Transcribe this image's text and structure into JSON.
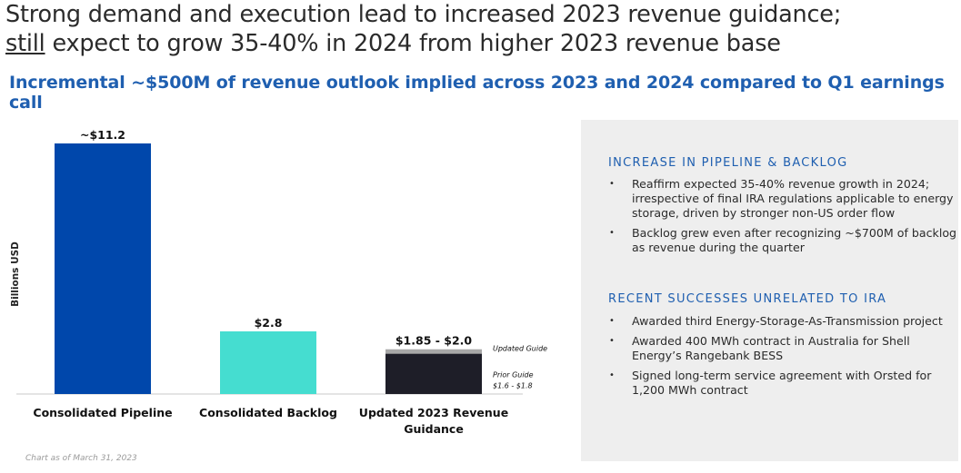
{
  "header": {
    "title_line1": "Strong demand and execution lead to increased 2023 revenue guidance;",
    "title_line2_underlined": "still",
    "title_line2_rest": " expect to grow 35-40% in 2024 from higher 2023 revenue base",
    "subtitle": "Incremental ~$500M of revenue outlook implied across 2023 and 2024 compared to Q1 earnings call"
  },
  "chart_data": {
    "type": "bar",
    "categories": [
      "Consolidated Pipeline",
      "Consolidated Backlog",
      "Updated 2023 Revenue Guidance"
    ],
    "category_lines": [
      [
        "Consolidated Pipeline"
      ],
      [
        "Consolidated Backlog"
      ],
      [
        "Updated 2023 Revenue",
        "Guidance"
      ]
    ],
    "values": [
      11.2,
      2.8,
      2.0
    ],
    "data_labels": [
      "~$11.2",
      "$2.8",
      "$1.85 - $2.0"
    ],
    "colors": [
      "#0047ab",
      "#45ddd0",
      "#1e1e28"
    ],
    "guidance": {
      "prior_range": [
        1.6,
        1.8
      ],
      "updated_range": [
        1.85,
        2.0
      ],
      "prior_color": "#1e1e28",
      "updated_color": "#a8a8a8",
      "updated_label": "Updated Guide",
      "prior_label": "Prior Guide",
      "prior_range_label": "$1.6 - $1.8"
    },
    "ylabel": "Billions USD",
    "ylim": [
      0,
      11.2
    ],
    "grid": false,
    "footnote": "Chart as of March 31, 2023"
  },
  "panel": {
    "sections": [
      {
        "heading": "INCREASE IN PIPELINE & BACKLOG",
        "bullets": [
          "Reaffirm expected 35-40% revenue growth in 2024; irrespective of final IRA regulations applicable to energy storage, driven by stronger non-US order flow",
          "Backlog grew even after recognizing ~$700M of backlog as revenue during the quarter"
        ]
      },
      {
        "heading": "RECENT SUCCESSES UNRELATED TO IRA",
        "bullets": [
          "Awarded third Energy-Storage-As-Transmission project",
          "Awarded 400 MWh contract in Australia for Shell Energy’s Rangebank BESS",
          "Signed long-term service agreement with Orsted for 1,200 MWh contract"
        ]
      }
    ]
  }
}
